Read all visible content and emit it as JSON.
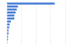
{
  "chart_data": {
    "type": "bar",
    "orientation": "horizontal",
    "categories": [
      null,
      null,
      null,
      null,
      null,
      null,
      null,
      null,
      null,
      null,
      null,
      null,
      null,
      null
    ],
    "values": [
      82,
      19,
      17,
      15,
      13,
      13,
      7,
      5,
      4,
      3,
      3,
      2,
      2,
      1
    ],
    "color": "#4a7fd6",
    "xlim": [
      0,
      100
    ],
    "xticks": [
      0,
      25,
      50,
      75,
      100
    ],
    "grid": true,
    "tick_labels": false
  }
}
